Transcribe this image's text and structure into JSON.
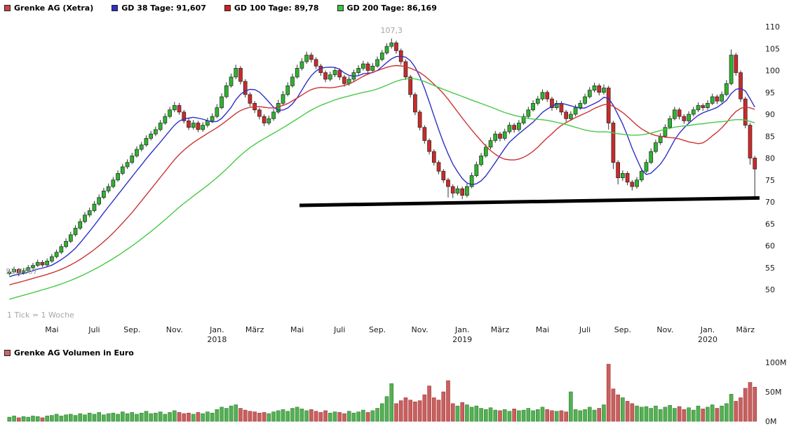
{
  "header": {
    "symbol": {
      "label": "Grenke AG (Xetra)",
      "color": "#cc4444"
    },
    "legend": [
      {
        "label": "GD 38 Tage: 91,607",
        "color": "#2f2fc8"
      },
      {
        "label": "GD 100 Tage: 89,78",
        "color": "#cc2222"
      },
      {
        "label": "GD 200 Tage: 86,169",
        "color": "#43c043"
      }
    ]
  },
  "volume_header": {
    "label": "Grenke AG Volumen in Euro",
    "color": "#cc6666"
  },
  "chart_data": {
    "type": "candlestick",
    "instrument": "Grenke AG (Xetra)",
    "interval_note": "1 Tick = 1 Woche",
    "y_axis": {
      "ticks": [
        50,
        55,
        60,
        65,
        70,
        75,
        80,
        85,
        90,
        95,
        100,
        105,
        110
      ]
    },
    "x_axis": {
      "month_ticks": [
        {
          "week": 9,
          "label": "Mai"
        },
        {
          "week": 18,
          "label": "Juli"
        },
        {
          "week": 26,
          "label": "Sep."
        },
        {
          "week": 35,
          "label": "Nov."
        },
        {
          "week": 44,
          "label": "Jan."
        },
        {
          "week": 52,
          "label": "März"
        },
        {
          "week": 61,
          "label": "Mai"
        },
        {
          "week": 70,
          "label": "Juli"
        },
        {
          "week": 78,
          "label": "Sep."
        },
        {
          "week": 87,
          "label": "Nov."
        },
        {
          "week": 96,
          "label": "Jan."
        },
        {
          "week": 104,
          "label": "März"
        },
        {
          "week": 113,
          "label": "Mai"
        },
        {
          "week": 122,
          "label": "Juli"
        },
        {
          "week": 130,
          "label": "Sep."
        },
        {
          "week": 139,
          "label": "Nov."
        },
        {
          "week": 148,
          "label": "Jan."
        },
        {
          "week": 156,
          "label": "März"
        }
      ],
      "year_ticks": [
        {
          "week": 44,
          "label": "2018"
        },
        {
          "week": 96,
          "label": "2019"
        },
        {
          "week": 148,
          "label": "2020"
        }
      ]
    },
    "moving_averages": [
      {
        "name": "GD 38 Tage",
        "current": "91,607",
        "window_weeks": 8,
        "color": "#2f2fc8"
      },
      {
        "name": "GD 100 Tage",
        "current": "89,78",
        "window_weeks": 20,
        "color": "#cc3333"
      },
      {
        "name": "GD 200 Tage",
        "current": "86,169",
        "window_weeks": 41,
        "color": "#47c947"
      }
    ],
    "ma_prehistory": {
      "start_price": 40,
      "weeks": 45
    },
    "trendline": {
      "from_week": 62,
      "from_price": 69.2,
      "to_week": 159.5,
      "to_price": 70.9,
      "color": "#000000",
      "stroke_width": 5
    },
    "annotations": [
      {
        "week": 81,
        "price": 107.3,
        "label": "107,3",
        "placement": "above"
      },
      {
        "week": 2,
        "price": 53.0167,
        "label": "53,0167",
        "placement": "low-left"
      }
    ],
    "volume": {
      "title": "Grenke AG Volumen in Euro",
      "unit": "EUR",
      "ticks": [
        {
          "value": 0,
          "label": "0M"
        },
        {
          "value": 50,
          "label": "50M"
        },
        {
          "value": 100,
          "label": "100M"
        }
      ]
    },
    "colors": {
      "up": "#2db52d",
      "down": "#cc2a2a",
      "wick": "#333333",
      "vol_up": "#53b153",
      "vol_down": "#c86060",
      "vol_up_stroke": "#2e7d2e",
      "vol_down_stroke": "#a33131",
      "axis_text": "#1a1a1a",
      "muted_text": "#a6a6a6"
    },
    "candles": [
      [
        53.6,
        54.6,
        53.2,
        54.0,
        7
      ],
      [
        54.0,
        55.2,
        53.6,
        54.6,
        9
      ],
      [
        54.6,
        54.9,
        53.0,
        53.8,
        6
      ],
      [
        53.8,
        54.9,
        53.4,
        54.3,
        8
      ],
      [
        54.3,
        55.6,
        53.9,
        55.0,
        7
      ],
      [
        55.0,
        56.1,
        54.5,
        55.5,
        9
      ],
      [
        55.5,
        56.8,
        55.1,
        56.2,
        8
      ],
      [
        56.2,
        56.7,
        55.1,
        55.6,
        6
      ],
      [
        55.6,
        57.1,
        55.2,
        56.5,
        9
      ],
      [
        56.5,
        58.1,
        56.1,
        57.5,
        10
      ],
      [
        57.5,
        59.1,
        57.1,
        58.5,
        12
      ],
      [
        58.5,
        60.4,
        58.1,
        59.8,
        9
      ],
      [
        59.8,
        61.7,
        59.4,
        61.0,
        11
      ],
      [
        61.0,
        63.2,
        60.6,
        62.5,
        12
      ],
      [
        62.5,
        64.7,
        62.1,
        64.0,
        10
      ],
      [
        64.0,
        66.2,
        63.6,
        65.5,
        13
      ],
      [
        65.5,
        67.7,
        65.1,
        67.0,
        11
      ],
      [
        67.0,
        68.7,
        66.5,
        68.0,
        14
      ],
      [
        68.0,
        70.2,
        67.6,
        69.5,
        12
      ],
      [
        69.5,
        71.7,
        69.1,
        71.0,
        15
      ],
      [
        71.0,
        73.2,
        70.6,
        72.5,
        11
      ],
      [
        72.5,
        74.2,
        72.0,
        73.5,
        13
      ],
      [
        73.5,
        75.7,
        73.1,
        75.0,
        14
      ],
      [
        75.0,
        77.2,
        74.6,
        76.5,
        12
      ],
      [
        76.5,
        78.7,
        76.1,
        78.0,
        16
      ],
      [
        78.0,
        79.7,
        77.5,
        79.0,
        13
      ],
      [
        79.0,
        81.2,
        78.6,
        80.5,
        15
      ],
      [
        80.5,
        82.7,
        80.1,
        82.0,
        12
      ],
      [
        82.0,
        83.7,
        81.5,
        83.0,
        14
      ],
      [
        83.0,
        85.2,
        82.6,
        84.5,
        17
      ],
      [
        84.5,
        86.2,
        84.0,
        85.5,
        13
      ],
      [
        85.5,
        87.2,
        85.0,
        86.5,
        14
      ],
      [
        86.5,
        88.7,
        86.1,
        88.0,
        16
      ],
      [
        88.0,
        90.2,
        87.6,
        89.5,
        12
      ],
      [
        89.5,
        91.7,
        89.1,
        91.0,
        15
      ],
      [
        91.0,
        92.8,
        90.5,
        92.0,
        18
      ],
      [
        92.0,
        92.6,
        89.9,
        90.5,
        15
      ],
      [
        90.5,
        91.0,
        87.9,
        88.5,
        13
      ],
      [
        88.5,
        89.0,
        86.4,
        87.0,
        14
      ],
      [
        87.0,
        88.7,
        86.5,
        88.0,
        12
      ],
      [
        88.0,
        88.5,
        85.9,
        86.5,
        15
      ],
      [
        86.5,
        88.2,
        86.0,
        87.5,
        13
      ],
      [
        87.5,
        89.2,
        87.0,
        88.5,
        16
      ],
      [
        88.5,
        90.2,
        88.0,
        89.5,
        14
      ],
      [
        89.5,
        92.3,
        89.1,
        91.5,
        20
      ],
      [
        91.5,
        94.8,
        91.1,
        94.0,
        24
      ],
      [
        94.0,
        97.3,
        93.6,
        96.5,
        22
      ],
      [
        96.5,
        99.3,
        96.1,
        98.5,
        26
      ],
      [
        98.5,
        101.3,
        98.0,
        100.5,
        28
      ],
      [
        100.5,
        101.0,
        96.8,
        97.5,
        22
      ],
      [
        97.5,
        98.0,
        93.8,
        94.5,
        19
      ],
      [
        94.5,
        95.0,
        91.8,
        92.5,
        17
      ],
      [
        92.5,
        93.0,
        90.3,
        91.0,
        16
      ],
      [
        91.0,
        91.5,
        88.8,
        89.5,
        14
      ],
      [
        89.5,
        90.0,
        87.3,
        88.0,
        15
      ],
      [
        88.0,
        89.7,
        87.5,
        89.0,
        13
      ],
      [
        89.0,
        91.2,
        88.5,
        90.5,
        16
      ],
      [
        90.5,
        93.3,
        90.1,
        92.5,
        18
      ],
      [
        92.5,
        95.3,
        92.1,
        94.5,
        20
      ],
      [
        94.5,
        97.3,
        94.1,
        96.5,
        17
      ],
      [
        96.5,
        99.3,
        96.1,
        98.5,
        22
      ],
      [
        98.5,
        101.3,
        98.1,
        100.5,
        24
      ],
      [
        100.5,
        102.8,
        100.0,
        102.0,
        21
      ],
      [
        102.0,
        104.3,
        101.5,
        103.5,
        18
      ],
      [
        103.5,
        104.1,
        101.8,
        102.5,
        20
      ],
      [
        102.5,
        103.0,
        100.3,
        101.0,
        17
      ],
      [
        101.0,
        101.5,
        98.8,
        99.5,
        15
      ],
      [
        99.5,
        100.0,
        97.3,
        98.0,
        18
      ],
      [
        98.0,
        99.7,
        97.5,
        99.0,
        14
      ],
      [
        99.0,
        100.7,
        98.5,
        100.0,
        16
      ],
      [
        100.0,
        100.5,
        97.8,
        98.5,
        15
      ],
      [
        98.5,
        99.0,
        96.3,
        97.0,
        13
      ],
      [
        97.0,
        98.7,
        96.5,
        98.0,
        17
      ],
      [
        98.0,
        100.2,
        97.5,
        99.5,
        14
      ],
      [
        99.5,
        101.2,
        99.0,
        100.5,
        16
      ],
      [
        100.5,
        102.2,
        100.0,
        101.5,
        19
      ],
      [
        101.5,
        102.0,
        99.3,
        100.0,
        15
      ],
      [
        100.0,
        101.7,
        99.5,
        101.0,
        18
      ],
      [
        101.0,
        103.2,
        100.6,
        102.5,
        22
      ],
      [
        102.5,
        104.7,
        102.1,
        104.0,
        30
      ],
      [
        104.0,
        106.2,
        103.6,
        105.5,
        42
      ],
      [
        105.5,
        107.3,
        105.0,
        106.3,
        64
      ],
      [
        106.3,
        106.8,
        103.8,
        104.5,
        30
      ],
      [
        104.5,
        105.0,
        101.3,
        102.0,
        35
      ],
      [
        102.0,
        102.5,
        97.8,
        98.5,
        40
      ],
      [
        98.5,
        99.0,
        93.8,
        94.5,
        36
      ],
      [
        94.5,
        95.0,
        89.8,
        90.5,
        33
      ],
      [
        90.5,
        91.0,
        86.3,
        87.0,
        35
      ],
      [
        87.0,
        87.5,
        83.3,
        84.0,
        45
      ],
      [
        84.0,
        84.5,
        80.8,
        81.5,
        60
      ],
      [
        81.5,
        82.0,
        78.3,
        79.0,
        40
      ],
      [
        79.0,
        79.5,
        76.3,
        77.0,
        36
      ],
      [
        77.0,
        77.5,
        74.3,
        75.0,
        50
      ],
      [
        75.0,
        75.5,
        71.0,
        73.5,
        69
      ],
      [
        73.5,
        74.0,
        70.9,
        72.0,
        30
      ],
      [
        72.0,
        73.7,
        71.5,
        73.0,
        26
      ],
      [
        73.0,
        73.5,
        70.6,
        71.5,
        32
      ],
      [
        71.5,
        74.2,
        71.0,
        73.5,
        28
      ],
      [
        73.5,
        76.7,
        73.1,
        76.0,
        24
      ],
      [
        76.0,
        79.2,
        75.6,
        78.5,
        26
      ],
      [
        78.5,
        81.2,
        78.1,
        80.5,
        22
      ],
      [
        80.5,
        83.2,
        80.1,
        82.5,
        20
      ],
      [
        82.5,
        84.7,
        82.0,
        84.0,
        23
      ],
      [
        84.0,
        86.2,
        83.5,
        85.5,
        19
      ],
      [
        85.5,
        86.0,
        83.8,
        84.5,
        18
      ],
      [
        84.5,
        86.7,
        84.0,
        86.0,
        20
      ],
      [
        86.0,
        88.2,
        85.5,
        87.5,
        17
      ],
      [
        87.5,
        88.0,
        85.8,
        86.5,
        21
      ],
      [
        86.5,
        88.7,
        86.0,
        88.0,
        18
      ],
      [
        88.0,
        90.2,
        87.6,
        89.5,
        19
      ],
      [
        89.5,
        91.7,
        89.1,
        91.0,
        22
      ],
      [
        91.0,
        93.2,
        90.6,
        92.5,
        18
      ],
      [
        92.5,
        94.2,
        92.0,
        93.5,
        20
      ],
      [
        93.5,
        95.7,
        93.1,
        95.0,
        24
      ],
      [
        95.0,
        95.5,
        92.8,
        93.5,
        20
      ],
      [
        93.5,
        94.0,
        90.8,
        91.5,
        18
      ],
      [
        91.5,
        93.2,
        91.0,
        92.5,
        17
      ],
      [
        92.5,
        93.0,
        89.8,
        90.5,
        18
      ],
      [
        90.5,
        91.0,
        88.3,
        89.0,
        16
      ],
      [
        89.0,
        90.7,
        88.5,
        90.0,
        50
      ],
      [
        90.0,
        92.2,
        89.5,
        91.5,
        20
      ],
      [
        91.5,
        93.2,
        91.0,
        92.5,
        18
      ],
      [
        92.5,
        94.7,
        92.1,
        94.0,
        20
      ],
      [
        94.0,
        96.2,
        93.6,
        95.5,
        24
      ],
      [
        95.5,
        97.2,
        95.0,
        96.5,
        19
      ],
      [
        96.5,
        97.0,
        94.3,
        95.0,
        22
      ],
      [
        95.0,
        96.8,
        94.5,
        96.0,
        28
      ],
      [
        96.0,
        96.5,
        86.5,
        88.0,
        97
      ],
      [
        88.0,
        88.5,
        77.5,
        79.0,
        55
      ],
      [
        79.0,
        79.5,
        74.0,
        75.5,
        45
      ],
      [
        75.5,
        77.2,
        74.8,
        76.5,
        40
      ],
      [
        76.5,
        77.0,
        73.8,
        74.5,
        34
      ],
      [
        74.5,
        75.0,
        72.6,
        73.5,
        30
      ],
      [
        73.5,
        75.7,
        73.0,
        75.0,
        26
      ],
      [
        75.0,
        77.7,
        74.5,
        77.0,
        24
      ],
      [
        77.0,
        79.7,
        76.6,
        79.0,
        25
      ],
      [
        79.0,
        82.2,
        78.6,
        81.5,
        22
      ],
      [
        81.5,
        84.2,
        81.1,
        83.5,
        26
      ],
      [
        83.5,
        85.7,
        83.0,
        85.0,
        20
      ],
      [
        85.0,
        87.7,
        84.6,
        87.0,
        24
      ],
      [
        87.0,
        89.7,
        86.6,
        89.0,
        27
      ],
      [
        89.0,
        91.7,
        88.6,
        91.0,
        22
      ],
      [
        91.0,
        91.5,
        88.8,
        89.5,
        25
      ],
      [
        89.5,
        90.0,
        87.8,
        88.5,
        20
      ],
      [
        88.5,
        90.7,
        88.0,
        90.0,
        23
      ],
      [
        90.0,
        91.7,
        89.5,
        91.0,
        19
      ],
      [
        91.0,
        92.7,
        90.5,
        92.0,
        26
      ],
      [
        92.0,
        92.5,
        90.8,
        91.5,
        21
      ],
      [
        91.5,
        93.2,
        91.0,
        92.5,
        24
      ],
      [
        92.5,
        94.7,
        92.1,
        94.0,
        28
      ],
      [
        94.0,
        94.5,
        92.3,
        93.0,
        22
      ],
      [
        93.0,
        95.2,
        92.5,
        94.5,
        26
      ],
      [
        94.5,
        97.8,
        94.1,
        97.0,
        30
      ],
      [
        97.0,
        104.8,
        96.6,
        103.5,
        46
      ],
      [
        103.5,
        104.0,
        98.8,
        99.5,
        34
      ],
      [
        99.5,
        100.0,
        92.8,
        93.5,
        40
      ],
      [
        93.5,
        94.0,
        86.8,
        87.5,
        56
      ],
      [
        87.5,
        88.0,
        78.5,
        80.0,
        66
      ],
      [
        80.0,
        80.5,
        70.6,
        77.5,
        58
      ]
    ]
  }
}
